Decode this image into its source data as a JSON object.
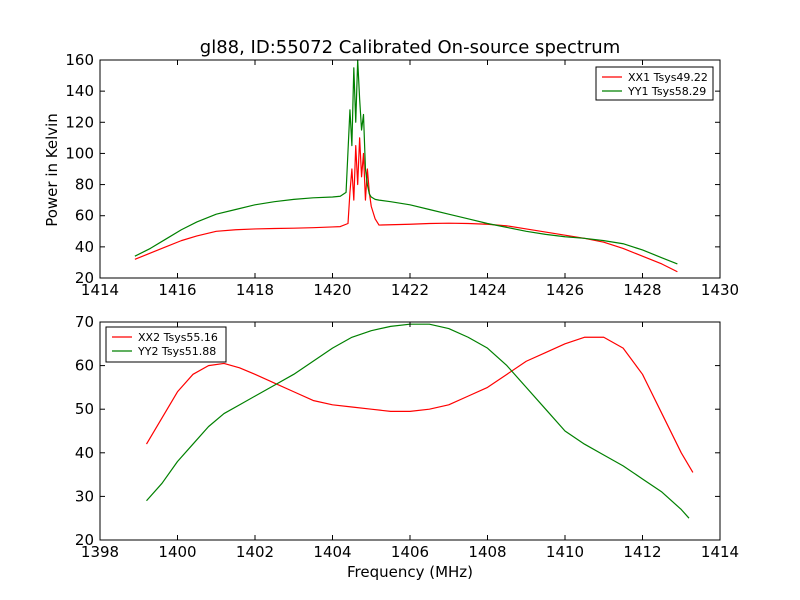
{
  "chart_data": [
    {
      "type": "line",
      "title": "gl88, ID:55072 Calibrated On-source spectrum",
      "xlabel": "",
      "ylabel": "Power in Kelvin",
      "xlim": [
        1414,
        1430
      ],
      "ylim": [
        20,
        160
      ],
      "xticks": [
        1414,
        1416,
        1418,
        1420,
        1422,
        1424,
        1426,
        1428,
        1430
      ],
      "yticks": [
        20,
        40,
        60,
        80,
        100,
        120,
        140,
        160
      ],
      "grid": false,
      "legend": "top-right",
      "series": [
        {
          "name": "XX1 Tsys49.22",
          "color": "#ff0000",
          "x": [
            1414.9,
            1415.3,
            1415.7,
            1416.1,
            1416.5,
            1417.0,
            1417.5,
            1418.0,
            1418.5,
            1419.0,
            1419.5,
            1420.0,
            1420.2,
            1420.4,
            1420.45,
            1420.5,
            1420.55,
            1420.6,
            1420.65,
            1420.7,
            1420.75,
            1420.8,
            1420.85,
            1420.9,
            1420.95,
            1421.0,
            1421.1,
            1421.2,
            1421.5,
            1422.0,
            1422.5,
            1423.0,
            1423.5,
            1424.0,
            1424.5,
            1425.0,
            1425.5,
            1426.0,
            1426.5,
            1427.0,
            1427.5,
            1428.0,
            1428.5,
            1428.9
          ],
          "y": [
            32,
            36,
            40,
            44,
            47,
            50,
            51,
            51.5,
            51.8,
            52,
            52.3,
            52.8,
            53,
            55,
            75,
            90,
            70,
            105,
            80,
            110,
            85,
            100,
            70,
            90,
            75,
            66,
            58,
            54,
            54.2,
            54.5,
            55,
            55.2,
            55,
            54.5,
            53.5,
            51.5,
            49.5,
            47.5,
            45.5,
            43,
            39,
            34,
            29,
            24
          ]
        },
        {
          "name": "YY1 Tsys58.29",
          "color": "#008000",
          "x": [
            1414.9,
            1415.3,
            1415.7,
            1416.1,
            1416.5,
            1417.0,
            1417.5,
            1418.0,
            1418.5,
            1419.0,
            1419.5,
            1420.0,
            1420.2,
            1420.35,
            1420.45,
            1420.5,
            1420.55,
            1420.6,
            1420.65,
            1420.7,
            1420.75,
            1420.8,
            1420.85,
            1420.9,
            1420.95,
            1421.0,
            1421.1,
            1421.2,
            1421.5,
            1422.0,
            1422.5,
            1423.0,
            1423.5,
            1424.0,
            1424.5,
            1425.0,
            1425.5,
            1426.0,
            1426.5,
            1427.0,
            1427.5,
            1428.0,
            1428.5,
            1428.9
          ],
          "y": [
            34,
            39,
            45,
            51,
            56,
            61,
            64,
            67,
            69,
            70.5,
            71.5,
            72,
            72.5,
            75,
            128,
            105,
            155,
            120,
            160,
            135,
            115,
            125,
            90,
            80,
            74,
            72,
            70.5,
            70,
            69,
            67,
            64,
            61,
            58,
            55,
            52.5,
            50,
            48,
            46.5,
            45.5,
            44,
            42,
            38,
            33,
            29
          ]
        }
      ]
    },
    {
      "type": "line",
      "title": "",
      "xlabel": "Frequency (MHz)",
      "ylabel": "",
      "xlim": [
        1398,
        1414
      ],
      "ylim": [
        20,
        70
      ],
      "xticks": [
        1398,
        1400,
        1402,
        1404,
        1406,
        1408,
        1410,
        1412,
        1414
      ],
      "yticks": [
        20,
        30,
        40,
        50,
        60,
        70
      ],
      "grid": false,
      "legend": "top-left",
      "series": [
        {
          "name": "XX2 Tsys55.16",
          "color": "#ff0000",
          "x": [
            1399.2,
            1399.6,
            1400.0,
            1400.4,
            1400.8,
            1401.2,
            1401.6,
            1402.0,
            1402.5,
            1403.0,
            1403.5,
            1404.0,
            1404.5,
            1405.0,
            1405.5,
            1406.0,
            1406.5,
            1407.0,
            1407.5,
            1408.0,
            1408.5,
            1409.0,
            1409.5,
            1410.0,
            1410.5,
            1411.0,
            1411.5,
            1412.0,
            1412.5,
            1413.0,
            1413.3
          ],
          "y": [
            42,
            48,
            54,
            58,
            60,
            60.5,
            59.5,
            58,
            56,
            54,
            52,
            51,
            50.5,
            50,
            49.5,
            49.5,
            50,
            51,
            53,
            55,
            58,
            61,
            63,
            65,
            66.5,
            66.5,
            64,
            58,
            49,
            40,
            35.5
          ]
        },
        {
          "name": "YY2 Tsys51.88",
          "color": "#008000",
          "x": [
            1399.2,
            1399.6,
            1400.0,
            1400.4,
            1400.8,
            1401.2,
            1401.6,
            1402.0,
            1402.5,
            1403.0,
            1403.5,
            1404.0,
            1404.5,
            1405.0,
            1405.5,
            1406.0,
            1406.5,
            1407.0,
            1407.5,
            1408.0,
            1408.5,
            1409.0,
            1409.5,
            1410.0,
            1410.5,
            1411.0,
            1411.5,
            1412.0,
            1412.5,
            1413.0,
            1413.2
          ],
          "y": [
            29,
            33,
            38,
            42,
            46,
            49,
            51,
            53,
            55.5,
            58,
            61,
            64,
            66.5,
            68,
            69,
            69.5,
            69.5,
            68.5,
            66.5,
            64,
            60,
            55,
            50,
            45,
            42,
            39.5,
            37,
            34,
            31,
            27,
            25
          ]
        }
      ]
    }
  ]
}
